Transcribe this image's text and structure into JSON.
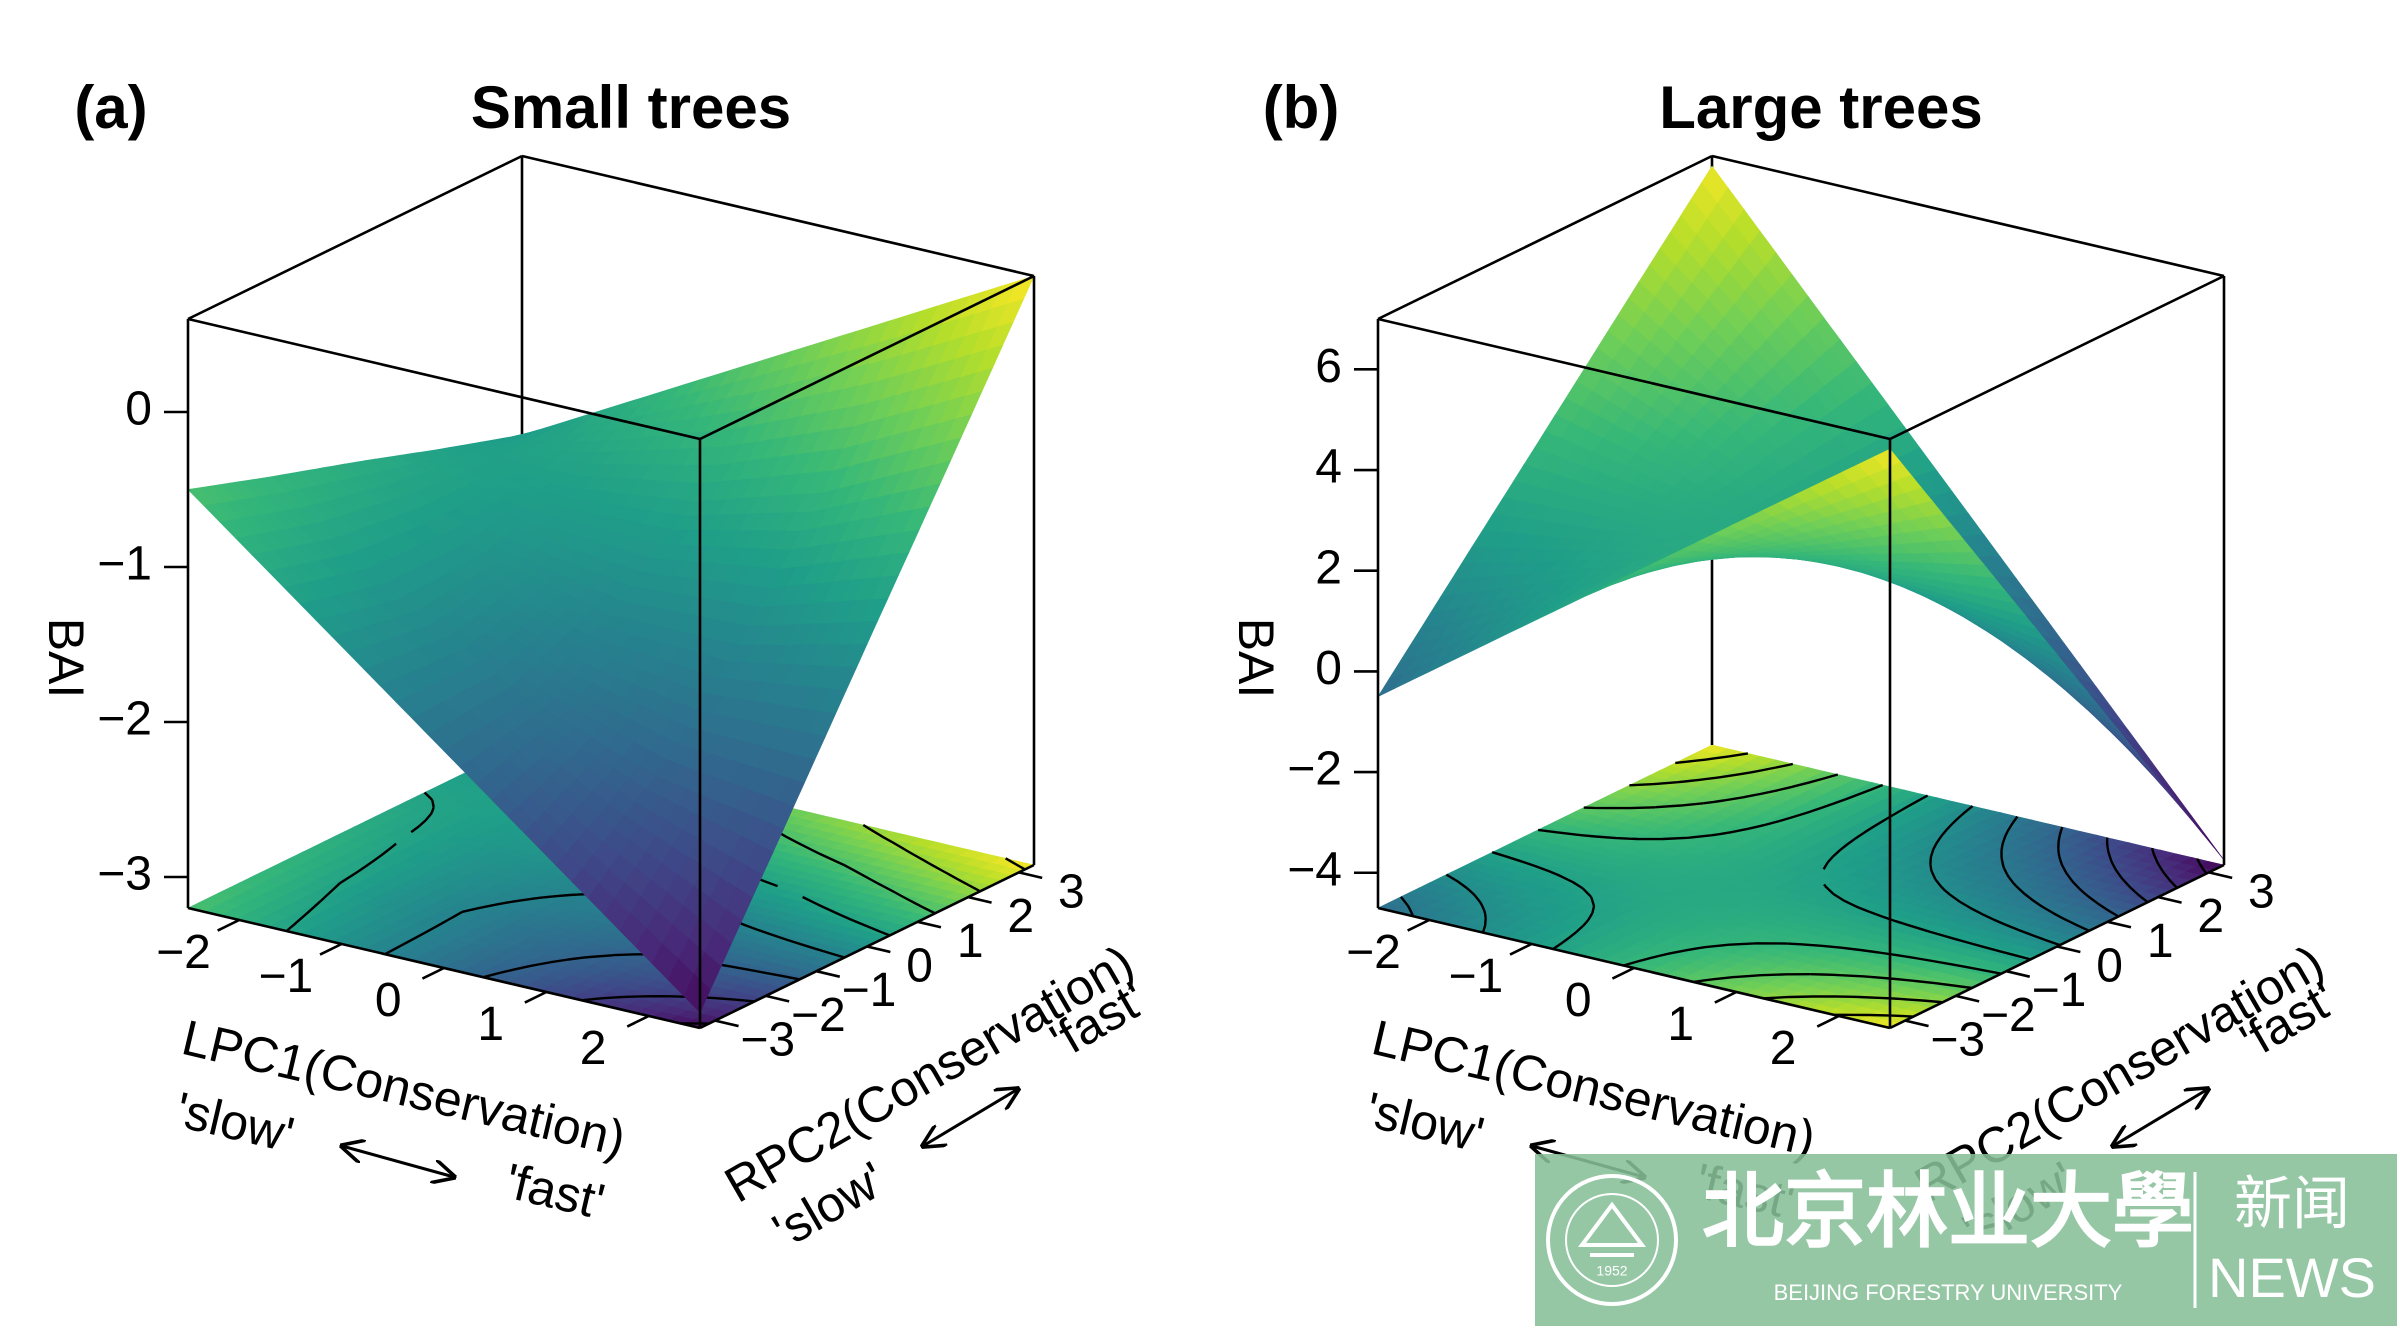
{
  "chart_data": [
    {
      "type": "surface3d",
      "panel_label": "(a)",
      "title": "Small trees",
      "zlabel": "BAI",
      "xlabel": "LPC1(Conservation)",
      "xlabel_low": "'slow'",
      "xlabel_high": "'fast'",
      "ylabel": "RPC2(Conservation)",
      "ylabel_low": "'slow'",
      "ylabel_high": "'fast'",
      "colormap": "viridis",
      "contours": true,
      "x": [
        -2.5,
        -1.25,
        0,
        1.25,
        2.5
      ],
      "y": [
        -3.3,
        -1.65,
        0,
        1.65,
        3.3
      ],
      "z": [
        [
          -0.5,
          -1.15,
          -1.8,
          -2.45,
          -3.1
        ],
        [
          -0.68,
          -1.28,
          -1.73,
          -2.03,
          -2.18
        ],
        [
          -0.85,
          -1.25,
          -1.45,
          -1.45,
          -1.25
        ],
        [
          -1.03,
          -1.08,
          -0.98,
          -0.73,
          -0.33
        ],
        [
          -1.2,
          -0.75,
          -0.3,
          0.15,
          0.6
        ]
      ],
      "xlim": [
        -2.5,
        2.5
      ],
      "ylim": [
        -3.3,
        3.3
      ],
      "zlim": [
        -3.2,
        0.6
      ],
      "xticks": [
        {
          "value": -2,
          "label": "−2"
        },
        {
          "value": -1,
          "label": "−1"
        },
        0,
        1,
        2
      ],
      "yticks": [
        {
          "value": -3,
          "label": "−3"
        },
        {
          "value": -2,
          "label": "−2"
        },
        {
          "value": -1,
          "label": "−1"
        },
        0,
        1,
        2,
        3
      ],
      "zticks": [
        {
          "value": -3,
          "label": "−3"
        },
        {
          "value": -2,
          "label": "−2"
        },
        {
          "value": -1,
          "label": "−1"
        },
        0
      ]
    },
    {
      "type": "surface3d",
      "panel_label": "(b)",
      "title": "Large trees",
      "zlabel": "BAI",
      "xlabel": "LPC1(Conservation)",
      "xlabel_low": "'slow'",
      "xlabel_high": "'fast'",
      "ylabel": "RPC2(Conservation)",
      "ylabel_low": "'slow'",
      "ylabel_high": "'fast'",
      "colormap": "viridis",
      "contours": true,
      "x": [
        -2.5,
        -1.25,
        0,
        1.25,
        2.5
      ],
      "y": [
        -3.3,
        -1.65,
        0,
        1.65,
        3.3
      ],
      "z": [
        [
          -0.5,
          1.33,
          3.15,
          4.98,
          6.8
        ],
        [
          1.33,
          1.99,
          2.64,
          3.3,
          3.95
        ],
        [
          3.15,
          2.64,
          2.13,
          1.62,
          1.1
        ],
        [
          4.98,
          3.3,
          1.61,
          -0.07,
          -1.75
        ],
        [
          6.8,
          3.95,
          1.1,
          -1.75,
          -4.6
        ]
      ],
      "xlim": [
        -2.5,
        2.5
      ],
      "ylim": [
        -3.3,
        3.3
      ],
      "zlim": [
        -4.7,
        7.0
      ],
      "xticks": [
        {
          "value": -2,
          "label": "−2"
        },
        {
          "value": -1,
          "label": "−1"
        },
        0,
        1,
        2
      ],
      "yticks": [
        {
          "value": -3,
          "label": "−3"
        },
        {
          "value": -2,
          "label": "−2"
        },
        {
          "value": -1,
          "label": "−1"
        },
        0,
        1,
        2,
        3
      ],
      "zticks": [
        {
          "value": -4,
          "label": "−4"
        },
        {
          "value": -2,
          "label": "−2"
        },
        0,
        2,
        4,
        6
      ]
    }
  ],
  "watermark": {
    "name_cn": "北京林业大學",
    "name_en": "BEIJING FORESTRY UNIVERSITY",
    "section_cn": "新闻",
    "section_en": "NEWS",
    "seal_year": "1952"
  }
}
